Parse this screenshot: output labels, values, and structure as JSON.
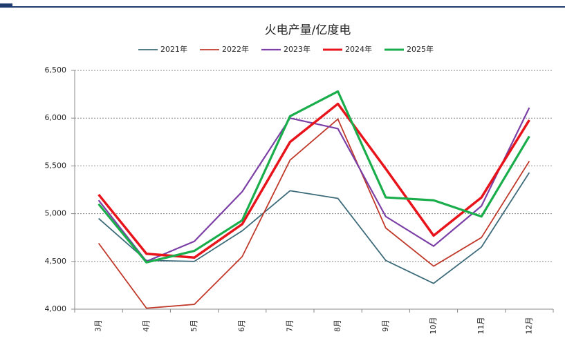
{
  "chart_data": {
    "type": "line",
    "title": "火电产量/亿度电",
    "categories": [
      "3月",
      "4月",
      "5月",
      "6月",
      "7月",
      "8月",
      "9月",
      "10月",
      "11月",
      "12月"
    ],
    "series": [
      {
        "name": "2021年",
        "color": "#3d6b7a",
        "width": 1.8,
        "values": [
          4950,
          4510,
          4500,
          4820,
          5240,
          5160,
          4510,
          4270,
          4650,
          5430
        ]
      },
      {
        "name": "2022年",
        "color": "#c0392b",
        "width": 1.8,
        "values": [
          4690,
          4010,
          4050,
          4550,
          5560,
          5990,
          4850,
          4450,
          4750,
          5550
        ]
      },
      {
        "name": "2023年",
        "color": "#7b3fa6",
        "width": 2.2,
        "values": [
          5140,
          4500,
          4710,
          5230,
          6000,
          5890,
          4970,
          4660,
          5080,
          6110
        ]
      },
      {
        "name": "2024年",
        "color": "#e8141c",
        "width": 3.5,
        "values": [
          5200,
          4580,
          4540,
          4890,
          5750,
          6150,
          5470,
          4770,
          5170,
          5980
        ]
      },
      {
        "name": "2025年",
        "color": "#1aad4b",
        "width": 3.2,
        "values": [
          5100,
          4490,
          4610,
          4930,
          6020,
          6280,
          5170,
          5140,
          4970,
          5810
        ]
      }
    ],
    "ylim": [
      4000,
      6500
    ],
    "yticks": [
      {
        "value": 4000,
        "label": "4,000"
      },
      {
        "value": 4500,
        "label": "4,500"
      },
      {
        "value": 5000,
        "label": "5,000"
      },
      {
        "value": 5500,
        "label": "5,500"
      },
      {
        "value": 6000,
        "label": "6,000"
      },
      {
        "value": 6500,
        "label": "6,500"
      }
    ],
    "grid": true,
    "legend": "top"
  }
}
